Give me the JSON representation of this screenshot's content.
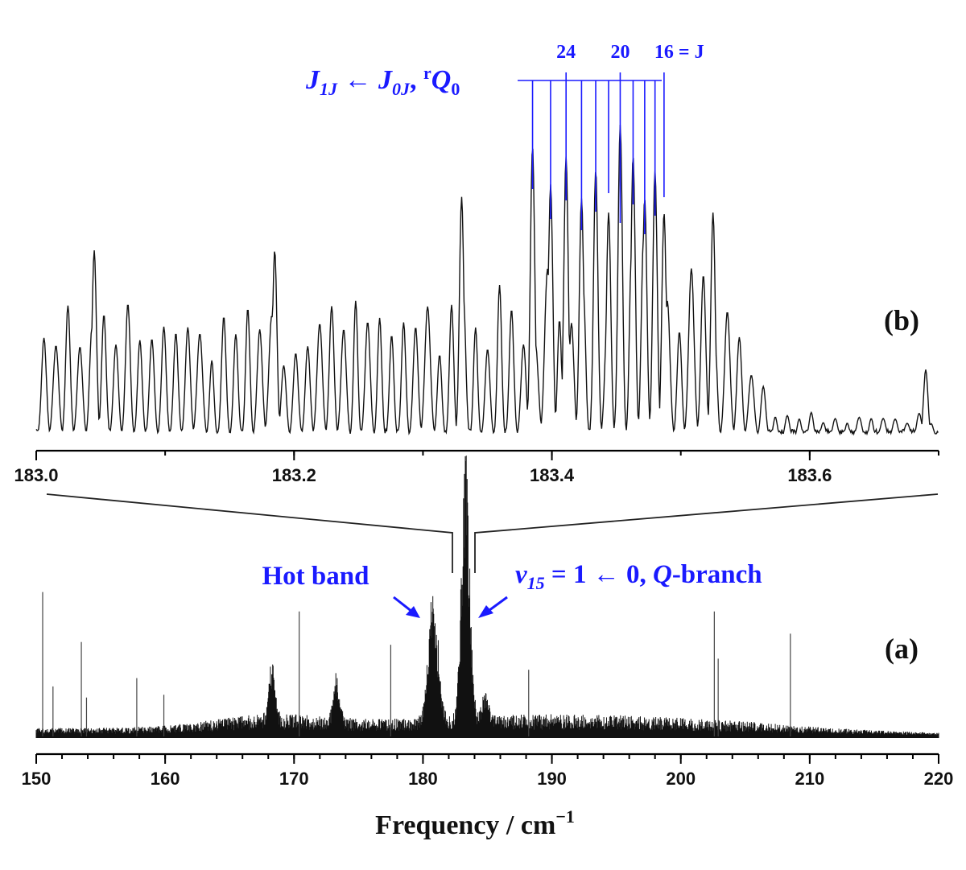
{
  "chart_data": [
    {
      "panel": "(a)",
      "type": "line",
      "title": "",
      "xlabel": "Frequency / cm⁻¹",
      "ylabel": "",
      "xlim": [
        150,
        220
      ],
      "xticks": [
        150,
        160,
        170,
        180,
        190,
        200,
        210,
        220
      ],
      "x_minor_step": 2,
      "annotations": [
        {
          "text": "Hot band",
          "x": 180.8
        },
        {
          "text": "ν15 = 1 ← 0, Q-branch",
          "x": 183.3
        }
      ],
      "features": [
        {
          "label": "hot band",
          "x": 180.8,
          "rel_intensity": 0.48
        },
        {
          "label": "Q-branch",
          "x": 183.3,
          "rel_intensity": 1.0
        },
        {
          "label": "band",
          "x": 168.3,
          "rel_intensity": 0.24
        },
        {
          "label": "band",
          "x": 173.3,
          "rel_intensity": 0.18
        },
        {
          "label": "band",
          "x": 184.8,
          "rel_intensity": 0.13
        }
      ],
      "sharp_lines": [
        {
          "x": 150.5,
          "rel_intensity": 0.52
        },
        {
          "x": 151.3,
          "rel_intensity": 0.18
        },
        {
          "x": 153.5,
          "rel_intensity": 0.34
        },
        {
          "x": 153.9,
          "rel_intensity": 0.14
        },
        {
          "x": 157.8,
          "rel_intensity": 0.21
        },
        {
          "x": 159.9,
          "rel_intensity": 0.15
        },
        {
          "x": 170.4,
          "rel_intensity": 0.45
        },
        {
          "x": 177.5,
          "rel_intensity": 0.33
        },
        {
          "x": 188.2,
          "rel_intensity": 0.24
        },
        {
          "x": 202.6,
          "rel_intensity": 0.45
        },
        {
          "x": 202.9,
          "rel_intensity": 0.28
        },
        {
          "x": 208.5,
          "rel_intensity": 0.37
        }
      ]
    },
    {
      "panel": "(b)",
      "type": "line",
      "title": "",
      "xlabel": "",
      "ylabel": "",
      "xlim": [
        183.0,
        183.7
      ],
      "xticks": [
        183.0,
        183.2,
        183.4,
        183.6
      ],
      "tick_labels": [
        "183.0",
        "183.2",
        "183.4",
        "183.6"
      ],
      "x_minor_step": 0.1,
      "assignment": {
        "label": "J1J ← J0J, rQ0",
        "label_parts": {
          "a": "J",
          "a_sub": "1J",
          "arrow": "←",
          "b": "J",
          "b_sub": "0J",
          "comma": ",",
          "pre": "r",
          "q": "Q",
          "q_sub": "0"
        },
        "j_labels": [
          {
            "text": "24",
            "J": 24
          },
          {
            "text": "20",
            "J": 20
          },
          {
            "text": "16 = J",
            "J": 16
          }
        ],
        "lines": [
          {
            "J": 26,
            "x": 183.385
          },
          {
            "J": 25,
            "x": 183.399
          },
          {
            "J": 24,
            "x": 183.411
          },
          {
            "J": 23,
            "x": 183.423
          },
          {
            "J": 22,
            "x": 183.434
          },
          {
            "J": 21,
            "x": 183.444
          },
          {
            "J": 20,
            "x": 183.453
          },
          {
            "J": 19,
            "x": 183.463
          },
          {
            "J": 18,
            "x": 183.472
          },
          {
            "J": 17,
            "x": 183.48
          },
          {
            "J": 16,
            "x": 183.487
          }
        ]
      },
      "peaks": [
        {
          "x": 183.045,
          "rel_intensity": 0.6
        },
        {
          "x": 183.185,
          "rel_intensity": 0.6
        },
        {
          "x": 183.33,
          "rel_intensity": 0.77
        },
        {
          "x": 183.385,
          "rel_intensity": 0.93
        },
        {
          "x": 183.453,
          "rel_intensity": 1.0
        },
        {
          "x": 183.525,
          "rel_intensity": 0.72
        },
        {
          "x": 183.69,
          "rel_intensity": 0.22
        }
      ]
    }
  ]
}
